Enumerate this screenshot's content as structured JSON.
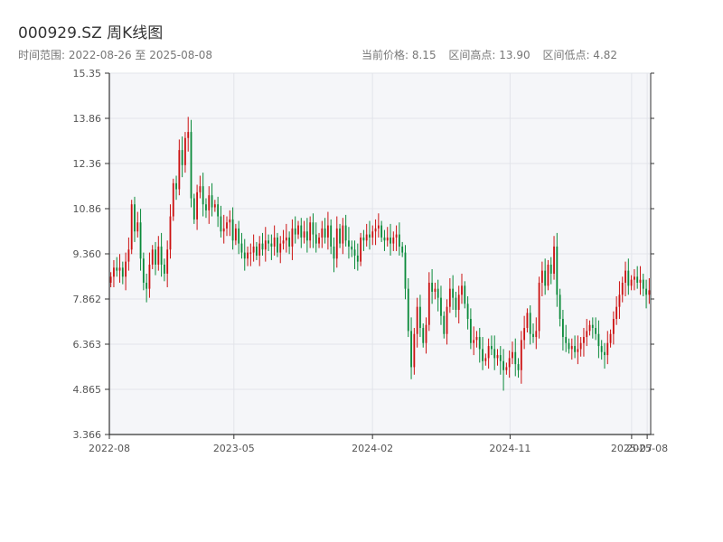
{
  "title": "000929.SZ 周K线图",
  "range_text": "时间范围: 2022-08-26 至 2025-08-08",
  "stats": {
    "current_price": "当前价格: 8.15",
    "range_high": "区间高点: 13.90",
    "range_low": "区间低点: 4.82"
  },
  "colors": {
    "up": "#cc1111",
    "down": "#0a8a3a",
    "plot_bg": "#f5f6f9",
    "grid": "#e2e4ea",
    "axis": "#333333"
  },
  "chart_data": {
    "type": "candlestick",
    "ylim": [
      3.366,
      15.35
    ],
    "yticks": [
      "3.366",
      "4.865",
      "6.363",
      "7.862",
      "9.360",
      "10.86",
      "12.36",
      "13.86",
      "15.35"
    ],
    "xticks": [
      {
        "label": "2022-08",
        "date": "2022-08-01"
      },
      {
        "label": "2023-05",
        "date": "2023-05-01"
      },
      {
        "label": "2024-02",
        "date": "2024-02-01"
      },
      {
        "label": "2024-11",
        "date": "2024-11-01"
      },
      {
        "label": "2025-07",
        "date": "2025-07-01"
      },
      {
        "label": "2025-08",
        "date": "2025-08-01"
      }
    ],
    "start_date": "2022-08-26",
    "end_date": "2025-08-08",
    "high": 13.9,
    "low": 4.82,
    "last_close": 8.15,
    "weekly_closes": [
      8.6,
      8.9,
      8.8,
      8.9,
      8.6,
      9.1,
      9.5,
      11.0,
      10.1,
      10.4,
      9.2,
      8.4,
      8.2,
      9.0,
      9.5,
      9.0,
      9.6,
      9.0,
      8.7,
      9.5,
      10.6,
      11.7,
      11.5,
      12.8,
      12.3,
      13.2,
      13.4,
      11.2,
      10.5,
      11.4,
      11.6,
      11.0,
      10.8,
      11.3,
      10.9,
      11.0,
      10.6,
      10.1,
      10.2,
      10.4,
      10.5,
      9.8,
      10.2,
      9.7,
      9.4,
      9.2,
      9.4,
      9.4,
      9.6,
      9.3,
      9.7,
      9.5,
      9.8,
      9.7,
      9.6,
      9.9,
      9.4,
      9.7,
      9.8,
      9.9,
      9.6,
      10.2,
      10.0,
      10.3,
      9.9,
      10.1,
      9.8,
      10.4,
      10.0,
      9.7,
      9.9,
      10.2,
      9.9,
      10.3,
      9.6,
      9.2,
      10.2,
      9.7,
      10.3,
      9.8,
      9.6,
      9.5,
      9.3,
      9.1,
      9.9,
      9.8,
      10.0,
      9.9,
      10.1,
      10.2,
      10.3,
      9.9,
      9.8,
      9.9,
      9.7,
      9.9,
      10.0,
      9.6,
      9.4,
      8.2,
      6.8,
      5.6,
      6.7,
      7.6,
      6.9,
      6.4,
      7.0,
      8.4,
      8.1,
      8.2,
      7.9,
      7.3,
      6.7,
      7.6,
      8.2,
      7.9,
      7.5,
      8.0,
      8.3,
      7.7,
      7.2,
      6.4,
      6.5,
      6.6,
      6.2,
      5.8,
      5.9,
      6.3,
      6.2,
      5.9,
      6.0,
      5.8,
      5.5,
      5.6,
      5.9,
      6.1,
      5.7,
      5.5,
      6.5,
      6.9,
      7.4,
      6.7,
      6.6,
      6.8,
      8.4,
      8.8,
      8.3,
      9.0,
      8.7,
      9.6,
      8.0,
      7.2,
      6.6,
      6.4,
      6.2,
      6.3,
      6.1,
      6.2,
      6.4,
      6.6,
      6.8,
      7.0,
      6.9,
      6.7,
      6.3,
      6.1,
      6.0,
      6.4,
      6.7,
      7.2,
      7.6,
      8.0,
      8.4,
      8.8,
      8.3,
      8.5,
      8.6,
      8.4,
      8.5,
      8.2,
      8.0,
      8.15
    ]
  }
}
